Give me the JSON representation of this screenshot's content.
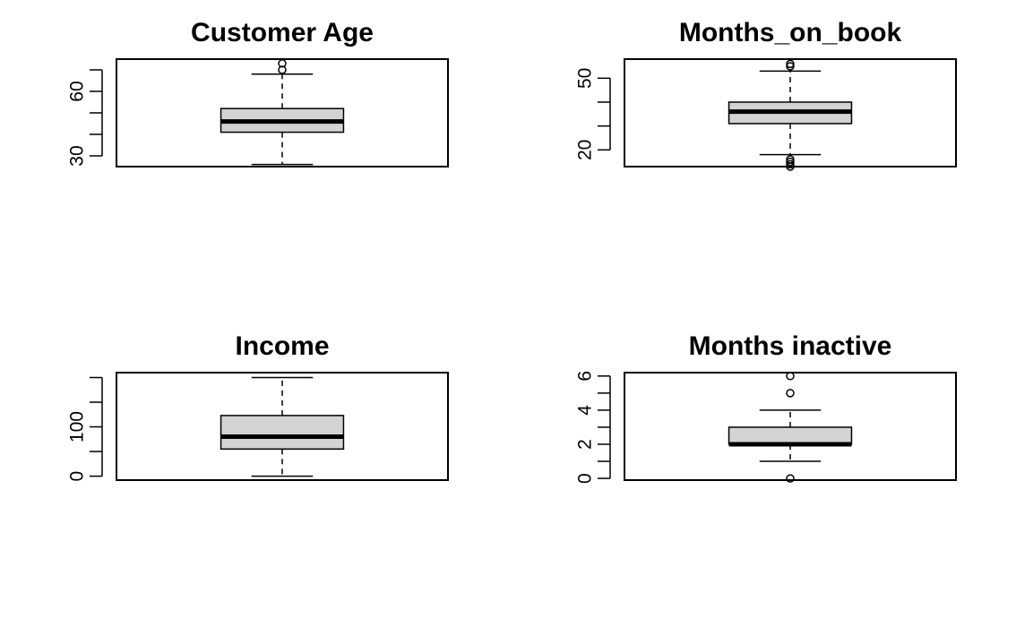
{
  "colors": {
    "box_fill": "#d3d3d3",
    "stroke": "#000000",
    "background": "#ffffff"
  },
  "chart_data": [
    {
      "type": "boxplot",
      "title": "Customer Age",
      "ylim": [
        25,
        75
      ],
      "yticks": [
        30,
        40,
        50,
        60,
        70
      ],
      "ytick_labels": [
        "30",
        "",
        "",
        "60",
        ""
      ],
      "box": {
        "whisker_low": 26,
        "q1": 41,
        "median": 46,
        "q3": 52,
        "whisker_high": 68
      },
      "outliers": [
        70,
        73
      ]
    },
    {
      "type": "boxplot",
      "title": "Months_on_book",
      "ylim": [
        13,
        58
      ],
      "yticks": [
        20,
        30,
        40,
        50
      ],
      "ytick_labels": [
        "20",
        "",
        "",
        "50"
      ],
      "box": {
        "whisker_low": 18,
        "q1": 31,
        "median": 36,
        "q3": 40,
        "whisker_high": 53
      },
      "outliers": [
        13,
        14,
        15,
        16,
        55,
        56
      ]
    },
    {
      "type": "boxplot",
      "title": "Income",
      "ylim": [
        -8,
        210
      ],
      "yticks": [
        0,
        50,
        100,
        150,
        200
      ],
      "ytick_labels": [
        "0",
        "",
        "100",
        "",
        ""
      ],
      "box": {
        "whisker_low": 0,
        "q1": 55,
        "median": 80,
        "q3": 123,
        "whisker_high": 200
      },
      "outliers": []
    },
    {
      "type": "boxplot",
      "title": "Months inactive",
      "ylim": [
        -0.1,
        6.2
      ],
      "yticks": [
        0,
        1,
        2,
        3,
        4,
        5,
        6
      ],
      "ytick_labels": [
        "0",
        "",
        "2",
        "",
        "4",
        "",
        "6"
      ],
      "box": {
        "whisker_low": 1,
        "q1": 2,
        "median": 2,
        "q3": 3,
        "whisker_high": 4
      },
      "outliers": [
        0,
        5,
        6
      ]
    }
  ]
}
